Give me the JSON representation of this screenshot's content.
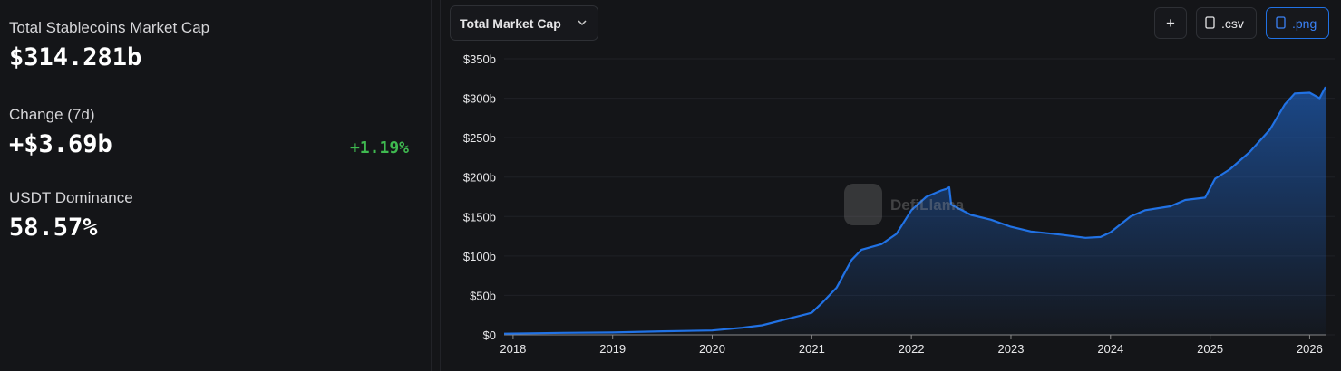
{
  "stats": [
    {
      "label": "Total Stablecoins Market Cap",
      "value": "$314.281b"
    },
    {
      "label": "Change (7d)",
      "value": "+$3.69b",
      "extra": "+1.19%"
    },
    {
      "label": "USDT Dominance",
      "value": "58.57%"
    }
  ],
  "controls": {
    "dropdown": "Total Market Cap",
    "add": "+",
    "csv": ".csv",
    "png": ".png"
  },
  "chart_data": {
    "type": "area",
    "watermark": "DefiLlama",
    "color": "#2172e5",
    "grid": true,
    "series": [
      {
        "name": "Total Market Cap",
        "color": "#2172e5",
        "x": [
          2017.91,
          2018.5,
          2019.0,
          2019.5,
          2020.0,
          2020.3,
          2020.5,
          2020.75,
          2021.0,
          2021.1,
          2021.25,
          2021.4,
          2021.5,
          2021.7,
          2021.85,
          2022.0,
          2022.15,
          2022.3,
          2022.35,
          2022.38,
          2022.4,
          2022.6,
          2022.8,
          2023.0,
          2023.2,
          2023.5,
          2023.75,
          2023.9,
          2024.0,
          2024.2,
          2024.35,
          2024.6,
          2024.75,
          2024.95,
          2025.05,
          2025.2,
          2025.4,
          2025.6,
          2025.75,
          2025.85,
          2026.0,
          2026.1,
          2026.16
        ],
        "values": [
          1.5,
          2.5,
          3,
          4.5,
          5.5,
          9,
          12,
          20,
          28,
          40,
          60,
          95,
          108,
          115,
          128,
          158,
          175,
          183,
          185,
          187,
          165,
          152,
          146,
          137,
          131,
          127,
          123,
          124,
          130,
          150,
          158,
          163,
          171,
          174,
          198,
          210,
          232,
          260,
          292,
          306,
          307,
          300,
          314.281
        ]
      }
    ],
    "xlim": [
      2017.91,
      2026.16
    ],
    "xticks": [
      2018,
      2019,
      2020,
      2021,
      2022,
      2023,
      2024,
      2025,
      2026
    ],
    "ylim": [
      0,
      350
    ],
    "yticks": [
      {
        "value": 0,
        "label": "$0"
      },
      {
        "value": 50,
        "label": "$50b"
      },
      {
        "value": 100,
        "label": "$100b"
      },
      {
        "value": 150,
        "label": "$150b"
      },
      {
        "value": 200,
        "label": "$200b"
      },
      {
        "value": 250,
        "label": "$250b"
      },
      {
        "value": 300,
        "label": "$300b"
      },
      {
        "value": 350,
        "label": "$350b"
      }
    ]
  }
}
